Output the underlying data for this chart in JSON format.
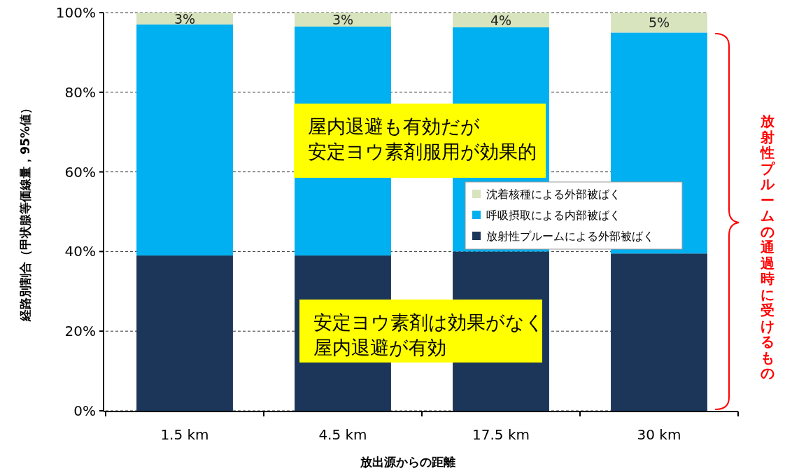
{
  "chart_data": {
    "type": "bar",
    "stacked": true,
    "xlabel": "放出源からの距離",
    "ylabel": "経路別割合（甲状腺等価線量，95%値）",
    "categories": [
      "1.5 km",
      "4.5 km",
      "17.5 km",
      "30 km"
    ],
    "ylim": [
      0,
      100
    ],
    "yticks": [
      {
        "value": 0,
        "label": "0%"
      },
      {
        "value": 20,
        "label": "20%"
      },
      {
        "value": 40,
        "label": "40%"
      },
      {
        "value": 60,
        "label": "60%"
      },
      {
        "value": 80,
        "label": "80%"
      },
      {
        "value": 100,
        "label": "100%"
      }
    ],
    "grid": "y",
    "legend": "right",
    "series": [
      {
        "name": "放射性プルームによる外部被ばく",
        "color": "#1b3659",
        "values": [
          39,
          39,
          40,
          39.5
        ]
      },
      {
        "name": "呼吸摂取による内部被ばく",
        "color": "#00b0f0",
        "values": [
          58,
          57.5,
          56.3,
          55.5
        ]
      },
      {
        "name": "沈着核種による外部被ばく",
        "color": "#d7e4bd",
        "values": [
          3,
          3.5,
          3.7,
          5
        ],
        "value_labels": [
          "3%",
          "3%",
          "4%",
          "5%"
        ]
      }
    ],
    "annotations": [
      "屋内退避も有効だが",
      "安定ヨウ素剤服用が効果的",
      "安定ヨウ素剤は効果がなく",
      "屋内退避が有効",
      "放射性プルームの通過時に受けるもの"
    ]
  }
}
